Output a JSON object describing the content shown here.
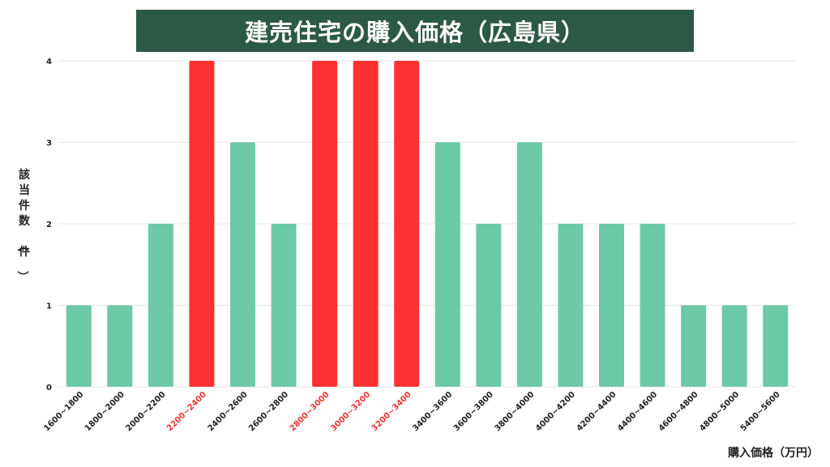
{
  "chart_data": {
    "type": "bar",
    "title": "建売住宅の購入価格（広島県）",
    "xlabel": "購入価格（万円）",
    "ylabel": "該当件数（件）",
    "ylim": [
      0,
      4
    ],
    "yticks": [
      "0",
      "1",
      "2",
      "3",
      "4"
    ],
    "grid": true,
    "categories": [
      "1600~1800",
      "1800~2000",
      "2000~2200",
      "2200~2400",
      "2400~2600",
      "2600~2800",
      "2800~3000",
      "3000~3200",
      "3200~3400",
      "3400~3600",
      "3600~3800",
      "3800~4000",
      "4000~4200",
      "4200~4400",
      "4400~4600",
      "4600~4800",
      "4800~5000",
      "5400~5600"
    ],
    "values": [
      1,
      1,
      2,
      4,
      3,
      2,
      4,
      4,
      4,
      3,
      2,
      3,
      2,
      2,
      2,
      1,
      1,
      1
    ],
    "highlighted": [
      false,
      false,
      false,
      true,
      false,
      false,
      true,
      true,
      true,
      false,
      false,
      false,
      false,
      false,
      false,
      false,
      false,
      false
    ],
    "colors": {
      "bar": "#6ccaa8",
      "highlight": "#fd3131",
      "label": "#222222",
      "highlight_label": "#e53935",
      "banner": "#2c5945",
      "grid": "#e6e6e6"
    }
  }
}
